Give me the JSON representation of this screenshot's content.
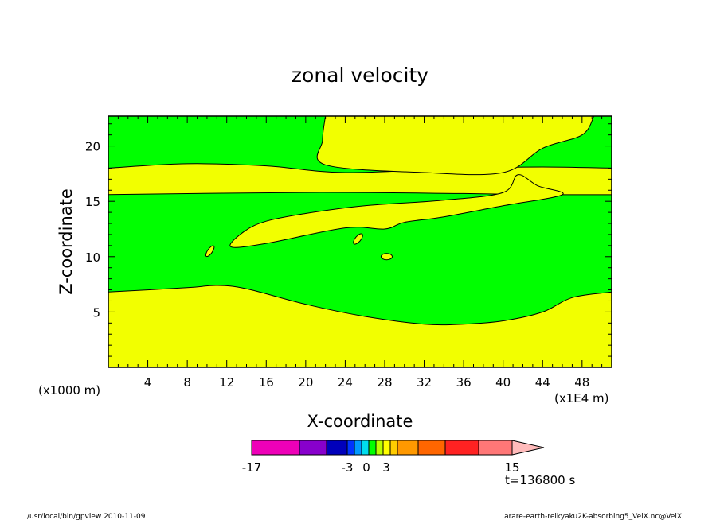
{
  "chart_data": {
    "type": "filled-contour",
    "title": "zonal velocity",
    "xlabel": "X-coordinate",
    "ylabel": "Z-coordinate",
    "x_unit_label": "(x1E4 m)",
    "y_unit_label": "(x1000 m)",
    "x_ticks": [
      4,
      8,
      12,
      16,
      20,
      24,
      28,
      32,
      36,
      40,
      44,
      48
    ],
    "y_ticks": [
      5,
      10,
      15,
      20
    ],
    "xlim": [
      0,
      51
    ],
    "ylim": [
      0,
      22.7
    ],
    "fill_levels": [
      {
        "name": "green",
        "range": [
          -3,
          0
        ],
        "color": "#00ff00"
      },
      {
        "name": "yellow",
        "range": [
          0,
          1.5
        ],
        "color": "#f2ff00"
      }
    ],
    "contour_regions": [
      {
        "name": "lower-yellow-layer",
        "fill": "yellow",
        "top_boundary": [
          [
            0,
            6.8
          ],
          [
            8,
            7.2
          ],
          [
            11,
            7.4
          ],
          [
            14,
            7.1
          ],
          [
            20,
            5.7
          ],
          [
            26,
            4.6
          ],
          [
            32,
            3.9
          ],
          [
            36,
            3.9
          ],
          [
            40,
            4.2
          ],
          [
            44,
            5.0
          ],
          [
            47,
            6.3
          ],
          [
            51,
            6.8
          ]
        ]
      },
      {
        "name": "middle-green-band",
        "fill": "green",
        "bottom": [
          [
            0,
            6.8
          ],
          [
            8,
            7.2
          ],
          [
            11,
            7.4
          ],
          [
            14,
            7.1
          ],
          [
            20,
            5.7
          ],
          [
            26,
            4.6
          ],
          [
            32,
            3.9
          ],
          [
            36,
            3.9
          ],
          [
            40,
            4.2
          ],
          [
            44,
            5.0
          ],
          [
            47,
            6.3
          ],
          [
            51,
            6.8
          ]
        ],
        "top": [
          [
            0,
            15.6
          ],
          [
            20,
            15.8
          ],
          [
            36,
            15.7
          ],
          [
            44,
            15.6
          ],
          [
            51,
            15.6
          ]
        ]
      },
      {
        "name": "middle-yellow-layer",
        "fill": "yellow",
        "bottom": [
          [
            0,
            15.6
          ],
          [
            20,
            15.8
          ],
          [
            36,
            15.7
          ],
          [
            44,
            15.6
          ],
          [
            51,
            15.6
          ]
        ],
        "top": [
          [
            0,
            18.0
          ],
          [
            8,
            18.4
          ],
          [
            16,
            18.2
          ],
          [
            24,
            17.6
          ],
          [
            36,
            18.0
          ],
          [
            44,
            18.1
          ],
          [
            51,
            18.0
          ]
        ]
      },
      {
        "name": "upper-green-layer",
        "fill": "green",
        "bottom": [
          [
            0,
            18.0
          ],
          [
            8,
            18.4
          ],
          [
            16,
            18.2
          ],
          [
            24,
            17.6
          ],
          [
            36,
            18.0
          ],
          [
            44,
            18.1
          ],
          [
            51,
            18.0
          ]
        ]
      },
      {
        "name": "upper-right-yellow-wedge",
        "fill": "yellow",
        "outline": [
          [
            22,
            22.7
          ],
          [
            21.7,
            20.5
          ],
          [
            22,
            18.3
          ],
          [
            32,
            17.6
          ],
          [
            40,
            17.6
          ],
          [
            44,
            19.8
          ],
          [
            48,
            21
          ],
          [
            49.2,
            22.7
          ]
        ]
      },
      {
        "name": "lower-right-yellow-tongue",
        "fill": "yellow",
        "outline": [
          [
            41.5,
            17.4
          ],
          [
            43.5,
            16.4
          ],
          [
            46,
            15.6
          ],
          [
            40,
            14.6
          ],
          [
            34,
            13.6
          ],
          [
            30,
            13.1
          ],
          [
            28,
            12.5
          ],
          [
            24,
            12.6
          ],
          [
            16,
            11.2
          ],
          [
            12.4,
            10.9
          ],
          [
            13.8,
            12.3
          ],
          [
            16,
            13.2
          ],
          [
            20,
            13.9
          ],
          [
            26,
            14.6
          ],
          [
            34,
            15.1
          ],
          [
            40,
            15.8
          ]
        ]
      },
      {
        "name": "yellow-islands",
        "fill": "yellow",
        "centers": [
          [
            10.3,
            10.5
          ],
          [
            25.3,
            11.6
          ],
          [
            28.2,
            10.0
          ]
        ]
      }
    ],
    "colorbar": {
      "boundary_labels": [
        "-17",
        "-3",
        "0",
        "3",
        "15"
      ],
      "colors": [
        "#ee00b8",
        "#8800cc",
        "#0000bb",
        "#0033ff",
        "#0099ff",
        "#00ddee",
        "#00ff00",
        "#bbff00",
        "#ffff00",
        "#ffcc00",
        "#ff9900",
        "#ff6600",
        "#ff2222",
        "#ff7777",
        "#ffbbbb"
      ]
    },
    "grid": false
  },
  "annotations": {
    "time_label": "t=136800 s",
    "footer_left": "/usr/local/bin/gpview  2010-11-09",
    "footer_right": "arare-earth-reikyaku2K-absorbing5_VelX.nc@VelX"
  }
}
